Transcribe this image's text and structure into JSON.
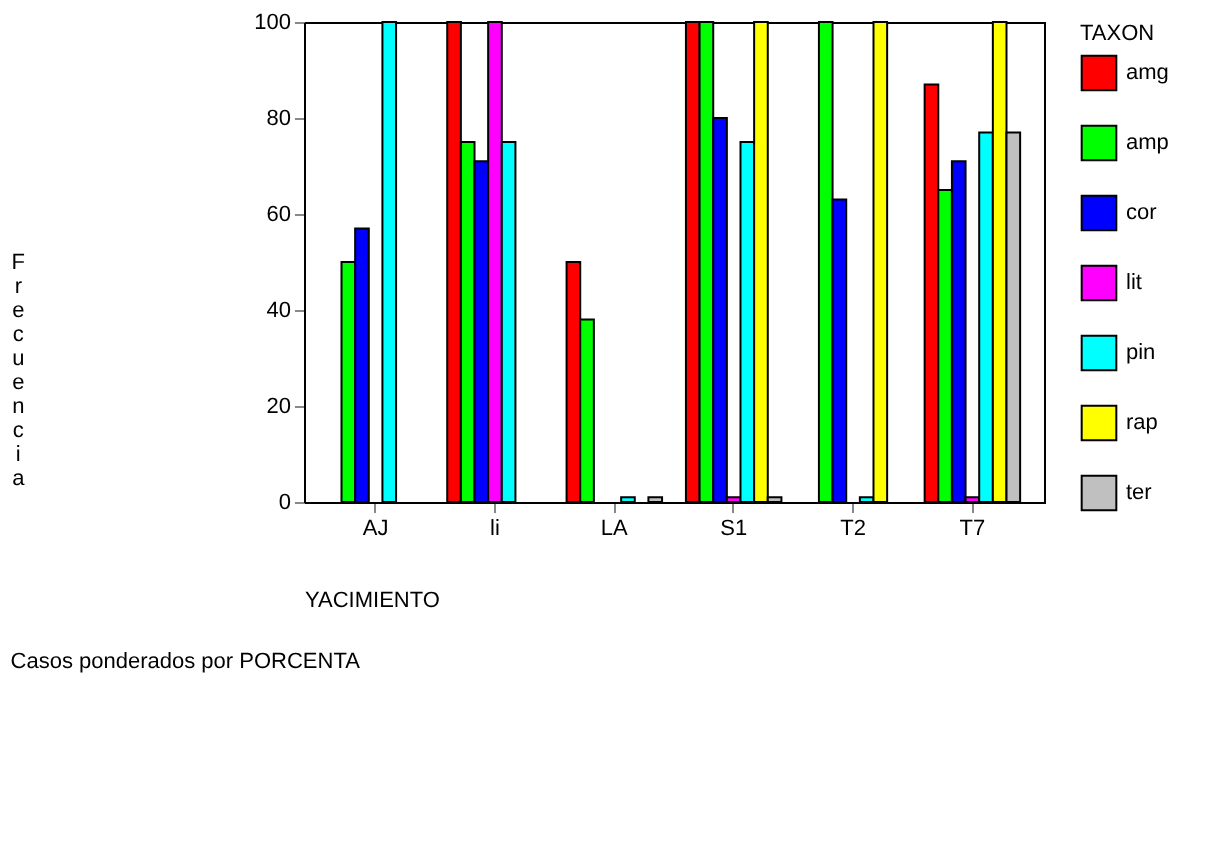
{
  "chart_data": {
    "type": "bar",
    "xlabel": "YACIMIENTO",
    "ylabel": "Frecuencia",
    "legend_title": "TAXON",
    "annotations": [
      "Casos ponderados por PORCENTA"
    ],
    "categories": [
      "AJ",
      "li",
      "LA",
      "S1",
      "T2",
      "T7"
    ],
    "series": [
      {
        "name": "amg",
        "color": "#ff0000",
        "values": [
          0,
          100,
          50,
          100,
          0,
          87
        ]
      },
      {
        "name": "amp",
        "color": "#00ff00",
        "values": [
          50,
          75,
          38,
          100,
          100,
          65
        ]
      },
      {
        "name": "cor",
        "color": "#0000ff",
        "values": [
          57,
          71,
          0,
          80,
          63,
          71
        ]
      },
      {
        "name": "lit",
        "color": "#ff00ff",
        "values": [
          0,
          100,
          0,
          1,
          0,
          1
        ]
      },
      {
        "name": "pin",
        "color": "#00ffff",
        "values": [
          100,
          75,
          1,
          75,
          1,
          77
        ]
      },
      {
        "name": "rap",
        "color": "#ffff00",
        "values": [
          0,
          0,
          0,
          100,
          100,
          100
        ]
      },
      {
        "name": "ter",
        "color": "#c0c0c0",
        "values": [
          0,
          0,
          1,
          1,
          0,
          77
        ]
      }
    ],
    "ylim": [
      0,
      100
    ],
    "yticks": [
      0,
      20,
      40,
      60,
      80,
      100
    ],
    "grid": false,
    "legend": "right"
  }
}
